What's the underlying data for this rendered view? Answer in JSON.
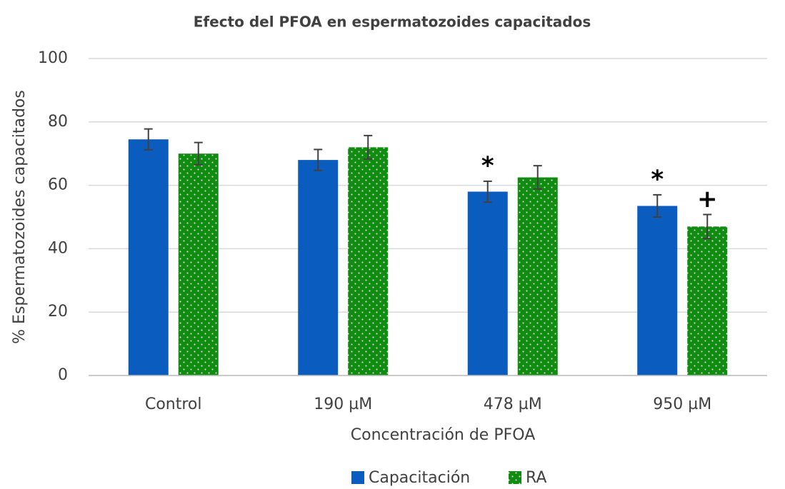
{
  "chart_data": {
    "type": "bar",
    "title": "Efecto del PFOA en espermatozoides capacitados",
    "x_label": "Concentración de PFOA",
    "y_label": "% Espermatozoides capacitados",
    "categories": [
      "Control",
      "190 µM",
      "478 µM",
      "950 µM"
    ],
    "series": [
      {
        "name": "Capacitación",
        "color": "#0b5cbf",
        "values": [
          74.5,
          68,
          58,
          53.5
        ],
        "errors": [
          3.3,
          3.3,
          3.3,
          3.5
        ],
        "annotations": [
          null,
          null,
          "*",
          "*"
        ]
      },
      {
        "name": "RA",
        "color": "#108c10",
        "values": [
          70,
          72,
          62.5,
          47
        ],
        "errors": [
          3.5,
          3.7,
          3.7,
          3.8
        ],
        "annotations": [
          null,
          null,
          null,
          "+"
        ]
      }
    ],
    "ylim": [
      0,
      100
    ],
    "yticks": [
      0,
      20,
      40,
      60,
      80,
      100
    ],
    "grid": true,
    "legend": "bottom"
  }
}
